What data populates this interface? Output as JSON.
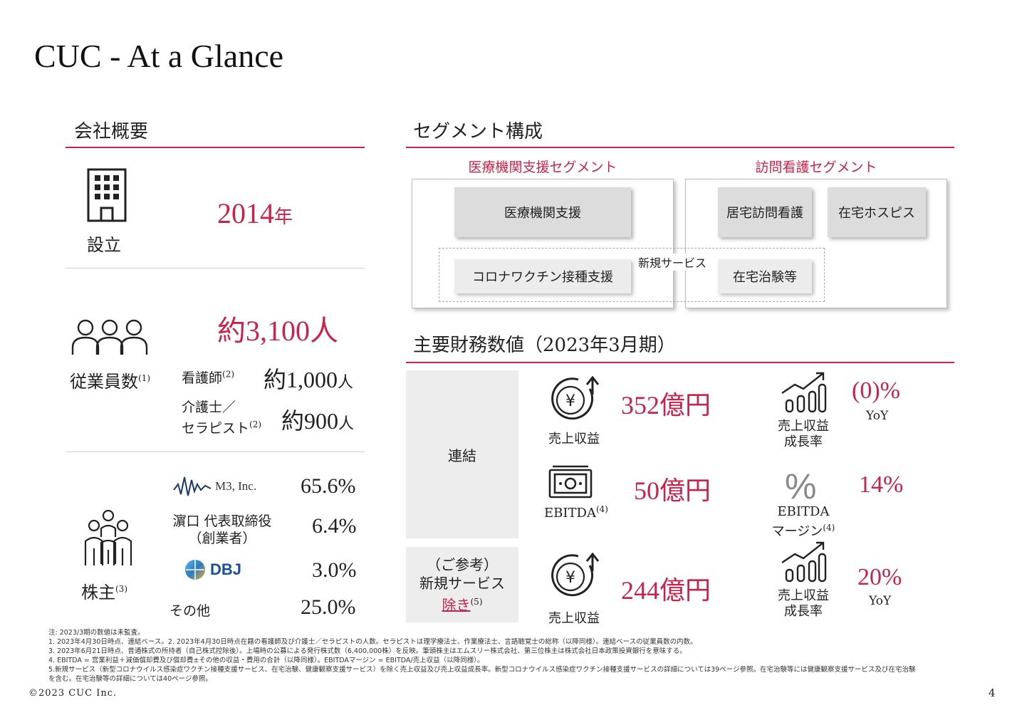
{
  "title": "CUC - At a Glance",
  "company": {
    "heading": "会社概要",
    "founded_label": "設立",
    "founded_value": "2014",
    "founded_unit": "年",
    "employees_label": "従業員数",
    "employees_note": "(1)",
    "employees_value": "約3,100人",
    "nurses_label": "看護師",
    "nurses_note": "(2)",
    "nurses_value": "約1,000",
    "nurses_unit": "人",
    "caregivers_label_1": "介護士／",
    "caregivers_label_2": "セラピスト",
    "caregivers_note": "(2)",
    "caregivers_value": "約900",
    "caregivers_unit": "人",
    "shareholders_label": "株主",
    "shareholders_note": "(3)",
    "shareholders": [
      {
        "name": "M3, Inc.",
        "value": "65.6%"
      },
      {
        "name_1": "濵口 代表取締役",
        "name_2": "（創業者）",
        "value": "6.4%"
      },
      {
        "name": "DBJ",
        "value": "3.0%"
      },
      {
        "name": "その他",
        "value": "25.0%"
      }
    ]
  },
  "segments": {
    "heading": "セグメント構成",
    "medical_title": "医療機関支援セグメント",
    "visit_title": "訪問看護セグメント",
    "medical_support": "医療機関支援",
    "corona": "コロナワクチン接種支援",
    "home_nursing": "居宅訪問看護",
    "home_hospice": "在宅ホスピス",
    "home_trials": "在宅治験等",
    "new_service": "新規サービス"
  },
  "financials": {
    "heading": "主要財務数値（2023年3月期）",
    "consolidated": "連結",
    "ref_1": "（ご参考）",
    "ref_2": "新規サービス",
    "ref_3": "除き",
    "ref_note": "(5)",
    "revenue_label": "売上収益",
    "revenue_value": "352億円",
    "growth_label_1": "売上収益",
    "growth_label_2": "成長率",
    "growth_value": "(0)%",
    "yoy": "YoY",
    "ebitda_label": "EBITDA",
    "ebitda_note": "(4)",
    "ebitda_value": "50億円",
    "margin_label_1": "EBITDA",
    "margin_label_2": "マージン",
    "margin_note": "(4)",
    "margin_value": "14%",
    "ref_revenue_label": "売上収益",
    "ref_revenue_value": "244億円",
    "ref_growth_label_1": "売上収益",
    "ref_growth_label_2": "成長率",
    "ref_growth_value": "20%",
    "ref_yoy": "YoY"
  },
  "notes": [
    "注: 2023/3期の数値は未監査。",
    "1. 2023年4月30日時点、連結ベース。2. 2023年4月30日時点在籍の看護師及び介護士／セラピストの人数。セラピストは理学療法士、作業療法士、言語聴覚士の総称（以降同様）。連結ベースの従業員数の内数。",
    "3. 2023年6月21日時点、普通株式の所持者（自己株式控除後）。上場時の公募による発行株式数（6,400,000株）を反映。筆頭株主はエムスリー株式会社、第三位株主は株式会社日本政策投資銀行を意味する。",
    "4. EBITDA = 営業利益＋減価償却費及び償却費±その他の収益・費用の合計（以降同様）。EBITDAマージン = EBITDA/売上収益（以降同様）。",
    "5.新規サービス（新型コロナウイルス感染症ワクチン接種支援サービス、在宅治験、健康観察支援サービス）を除く売上収益及び売上収益成長率。新型コロナウイルス感染症ワクチン接種支援サービスの詳細については39ページ参照。在宅治験等には健康観察支援サービス及び在宅治験",
    "を含む。在宅治験等の詳細については40ページ参照。"
  ],
  "footer": {
    "copyright": "©2023 CUC Inc.",
    "page": "4"
  },
  "colors": {
    "accent": "#c8234b",
    "panel": "#ededed"
  }
}
